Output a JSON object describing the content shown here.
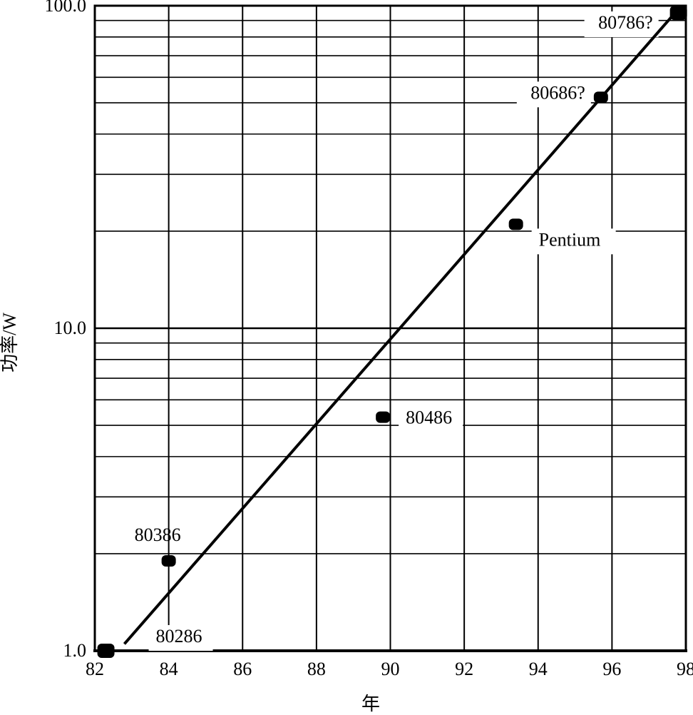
{
  "chart_data": {
    "type": "scatter",
    "xlabel": "年",
    "ylabel": "功率/W",
    "xlim": [
      82,
      98
    ],
    "ylim": [
      1,
      100
    ],
    "yscale": "log",
    "grid": true,
    "x_ticks": [
      "82",
      "84",
      "86",
      "88",
      "90",
      "92",
      "94",
      "96",
      "98"
    ],
    "y_ticks": [
      "1.0",
      "10.0",
      "100.0"
    ],
    "points": [
      {
        "label": "80286",
        "x": 82.3,
        "y": 1.0
      },
      {
        "label": "80386",
        "x": 84.0,
        "y": 1.9
      },
      {
        "label": "80486",
        "x": 89.8,
        "y": 5.3
      },
      {
        "label": "Pentium",
        "x": 93.4,
        "y": 21
      },
      {
        "label": "80686?",
        "x": 95.7,
        "y": 52
      },
      {
        "label": "80786?",
        "x": 97.8,
        "y": 95
      }
    ],
    "trend_line": {
      "x": [
        82.8,
        97.6
      ],
      "y": [
        1.05,
        92
      ]
    }
  }
}
